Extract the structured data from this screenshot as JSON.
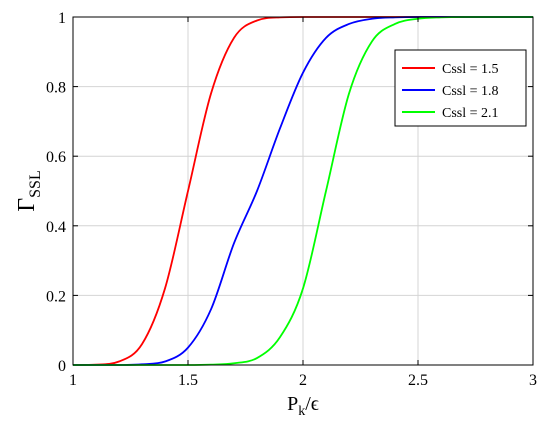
{
  "chart_data": {
    "type": "line",
    "xlabel": {
      "main": "P",
      "sub": "k",
      "suffix": "/ϵ"
    },
    "ylabel": {
      "main": "Γ",
      "sub": "SSL"
    },
    "xlim": [
      1,
      3
    ],
    "ylim": [
      0,
      1
    ],
    "xticks": [
      1,
      1.5,
      2,
      2.5,
      3
    ],
    "xtick_labels": [
      "1",
      "1.5",
      "2",
      "2.5",
      "3"
    ],
    "yticks": [
      0,
      0.2,
      0.4,
      0.6,
      0.8,
      1
    ],
    "ytick_labels": [
      "0",
      "0.2",
      "0.4",
      "0.6",
      "0.8",
      "1"
    ],
    "grid": true,
    "legend_position": "top-right",
    "x": [
      1,
      1.1,
      1.2,
      1.3,
      1.4,
      1.5,
      1.6,
      1.7,
      1.8,
      1.9,
      2,
      2.1,
      2.2,
      2.3,
      2.4,
      2.5,
      2.6,
      2.7,
      2.8,
      2.9,
      3
    ],
    "series": [
      {
        "name": "Cssl = 1.5",
        "color": "#ff0000",
        "values": [
          0.0,
          0.001,
          0.01,
          0.06,
          0.22,
          0.5,
          0.78,
          0.94,
          0.99,
          0.999,
          1.0,
          1.0,
          1.0,
          1.0,
          1.0,
          1.0,
          1.0,
          1.0,
          1.0,
          1.0,
          1.0
        ]
      },
      {
        "name": "Cssl = 1.8",
        "color": "#0000ff",
        "values": [
          0.0,
          0.0,
          0.0,
          0.002,
          0.01,
          0.05,
          0.16,
          0.35,
          0.5,
          0.68,
          0.84,
          0.94,
          0.98,
          0.995,
          0.999,
          1.0,
          1.0,
          1.0,
          1.0,
          1.0,
          1.0
        ]
      },
      {
        "name": "Cssl = 2.1",
        "color": "#00ff00",
        "values": [
          0.0,
          0.0,
          0.0,
          0.0,
          0.0,
          0.0,
          0.001,
          0.005,
          0.02,
          0.08,
          0.22,
          0.5,
          0.78,
          0.93,
          0.98,
          0.995,
          0.999,
          1.0,
          1.0,
          1.0,
          1.0
        ]
      }
    ]
  }
}
